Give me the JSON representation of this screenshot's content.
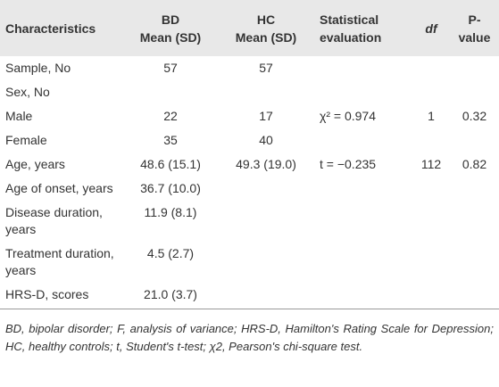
{
  "table": {
    "header": [
      [
        "Characteristics"
      ],
      [
        "BD",
        "Mean (SD)"
      ],
      [
        "HC",
        "Mean (SD)"
      ],
      [
        "Statistical",
        "evaluation"
      ],
      [
        "df"
      ],
      [
        "P-value"
      ]
    ],
    "rows": [
      [
        "Sample, No",
        "57",
        "57",
        null,
        null,
        null
      ],
      [
        "Sex, No",
        null,
        null,
        null,
        null,
        null
      ],
      [
        "Male",
        "22",
        "17",
        "χ² = 0.974",
        "1",
        "0.32"
      ],
      [
        "Female",
        "35",
        "40",
        null,
        null,
        null
      ],
      [
        "Age, years",
        "48.6 (15.1)",
        "49.3 (19.0)",
        "t = −0.235",
        "112",
        "0.82"
      ],
      [
        "Age of onset, years",
        "36.7 (10.0)",
        null,
        null,
        null,
        null
      ],
      [
        "Disease duration, years",
        "11.9 (8.1)",
        null,
        null,
        null,
        null
      ],
      [
        "Treatment duration, years",
        "4.5 (2.7)",
        null,
        null,
        null,
        null
      ],
      [
        "HRS-D, scores",
        "21.0 (3.7)",
        null,
        null,
        null,
        null
      ]
    ]
  },
  "footnote": "BD, bipolar disorder; F, analysis of variance; HRS-D, Hamilton's Rating Scale for Depression; HC, healthy controls; t, Student's t-test; χ2, Pearson's chi-square test."
}
